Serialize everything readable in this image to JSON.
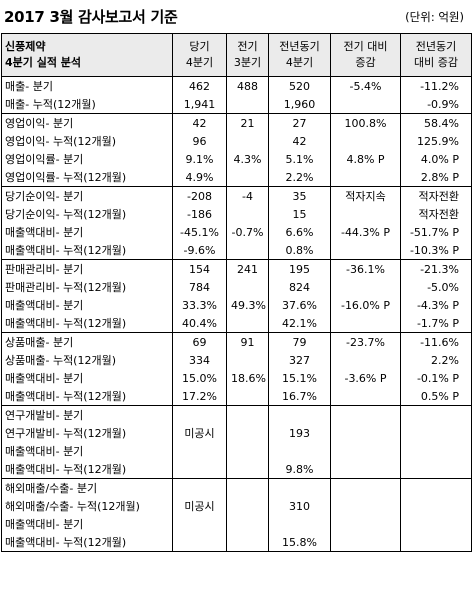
{
  "title": "2017 3월 감사보고서 기준",
  "unit": "(단위: 억원)",
  "headers": {
    "h0_line1": "신풍제약",
    "h0_line2": "4분기 실적 분석",
    "h1_line1": "당기",
    "h1_line2": "4분기",
    "h2_line1": "전기",
    "h2_line2": "3분기",
    "h3_line1": "전년동기",
    "h3_line2": "4분기",
    "h4_line1": "전기 대비",
    "h4_line2": "증감",
    "h5_line1": "전년동기",
    "h5_line2": "대비 증감"
  },
  "rows": [
    [
      "매출- 분기",
      "462",
      "488",
      "520",
      "-5.4%",
      "-11.2%"
    ],
    [
      "매출- 누적(12개월)",
      "1,941",
      "",
      "1,960",
      "",
      "-0.9%"
    ],
    [
      "영업이익- 분기",
      "42",
      "21",
      "27",
      "100.8%",
      "58.4%"
    ],
    [
      "영업이익- 누적(12개월)",
      "96",
      "",
      "42",
      "",
      "125.9%"
    ],
    [
      "영업이익률- 분기",
      "9.1%",
      "4.3%",
      "5.1%",
      "4.8% P",
      "4.0% P"
    ],
    [
      "영업이익률- 누적(12개월)",
      "4.9%",
      "",
      "2.2%",
      "",
      "2.8% P"
    ],
    [
      "당기순이익- 분기",
      "-208",
      "-4",
      "35",
      "적자지속",
      "적자전환"
    ],
    [
      "당기순이익- 누적(12개월)",
      "-186",
      "",
      "15",
      "",
      "적자전환"
    ],
    [
      "매출액대비- 분기",
      "-45.1%",
      "-0.7%",
      "6.6%",
      "-44.3% P",
      "-51.7% P"
    ],
    [
      "매출액대비- 누적(12개월)",
      "-9.6%",
      "",
      "0.8%",
      "",
      "-10.3% P"
    ],
    [
      "판매관리비- 분기",
      "154",
      "241",
      "195",
      "-36.1%",
      "-21.3%"
    ],
    [
      "판매관리비- 누적(12개월)",
      "784",
      "",
      "824",
      "",
      "-5.0%"
    ],
    [
      "매출액대비- 분기",
      "33.3%",
      "49.3%",
      "37.6%",
      "-16.0% P",
      "-4.3% P"
    ],
    [
      "매출액대비- 누적(12개월)",
      "40.4%",
      "",
      "42.1%",
      "",
      "-1.7% P"
    ],
    [
      "상품매출- 분기",
      "69",
      "91",
      "79",
      "-23.7%",
      "-11.6%"
    ],
    [
      "상품매출- 누적(12개월)",
      "334",
      "",
      "327",
      "",
      "2.2%"
    ],
    [
      "매출액대비- 분기",
      "15.0%",
      "18.6%",
      "15.1%",
      "-3.6% P",
      "-0.1% P"
    ],
    [
      "매출액대비- 누적(12개월)",
      "17.2%",
      "",
      "16.7%",
      "",
      "0.5% P"
    ],
    [
      "연구개발비- 분기",
      "",
      "",
      "",
      "",
      ""
    ],
    [
      "연구개발비- 누적(12개월)",
      "미공시",
      "",
      "193",
      "",
      ""
    ],
    [
      "매출액대비- 분기",
      "",
      "",
      "",
      "",
      ""
    ],
    [
      "매출액대비- 누적(12개월)",
      "",
      "",
      "9.8%",
      "",
      ""
    ],
    [
      "해외매출/수출- 분기",
      "",
      "",
      "",
      "",
      ""
    ],
    [
      "해외매출/수출- 누적(12개월)",
      "미공시",
      "",
      "310",
      "",
      ""
    ],
    [
      "매출액대비- 분기",
      "",
      "",
      "",
      "",
      ""
    ],
    [
      "매출액대비- 누적(12개월)",
      "",
      "",
      "15.8%",
      "",
      ""
    ]
  ]
}
